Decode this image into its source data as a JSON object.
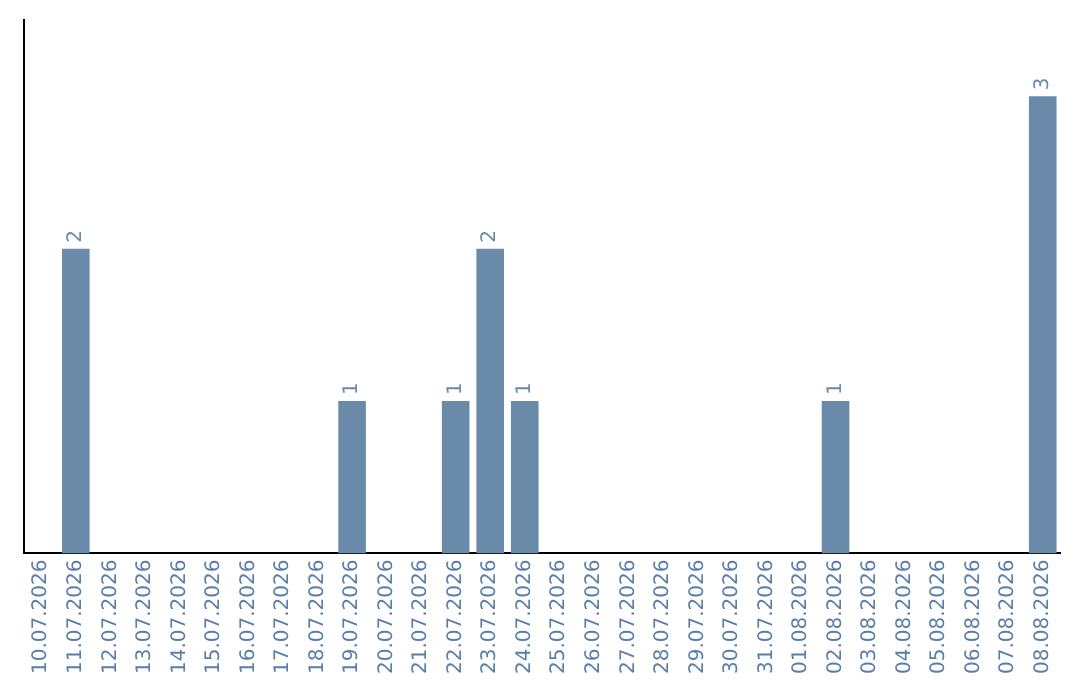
{
  "chart_data": {
    "type": "bar",
    "categories": [
      "10.07.2026",
      "11.07.2026",
      "12.07.2026",
      "13.07.2026",
      "14.07.2026",
      "15.07.2026",
      "16.07.2026",
      "17.07.2026",
      "18.07.2026",
      "19.07.2026",
      "20.07.2026",
      "21.07.2026",
      "22.07.2026",
      "23.07.2026",
      "24.07.2026",
      "25.07.2026",
      "26.07.2026",
      "27.07.2026",
      "28.07.2026",
      "29.07.2026",
      "30.07.2026",
      "31.07.2026",
      "01.08.2026",
      "02.08.2026",
      "03.08.2026",
      "04.08.2026",
      "05.08.2026",
      "06.08.2026",
      "07.08.2026",
      "08.08.2026"
    ],
    "values": [
      0,
      2,
      0,
      0,
      0,
      0,
      0,
      0,
      0,
      1,
      0,
      0,
      1,
      2,
      1,
      0,
      0,
      0,
      0,
      0,
      0,
      0,
      0,
      1,
      0,
      0,
      0,
      0,
      0,
      3
    ],
    "value_labels": [
      null,
      "2",
      null,
      null,
      null,
      null,
      null,
      null,
      null,
      "1",
      null,
      null,
      "1",
      "2",
      "1",
      null,
      null,
      null,
      null,
      null,
      null,
      null,
      null,
      "1",
      null,
      null,
      null,
      null,
      null,
      "3"
    ],
    "color": "#6a8aaa",
    "grid": false,
    "legend": false,
    "tick_labels": "x"
  }
}
